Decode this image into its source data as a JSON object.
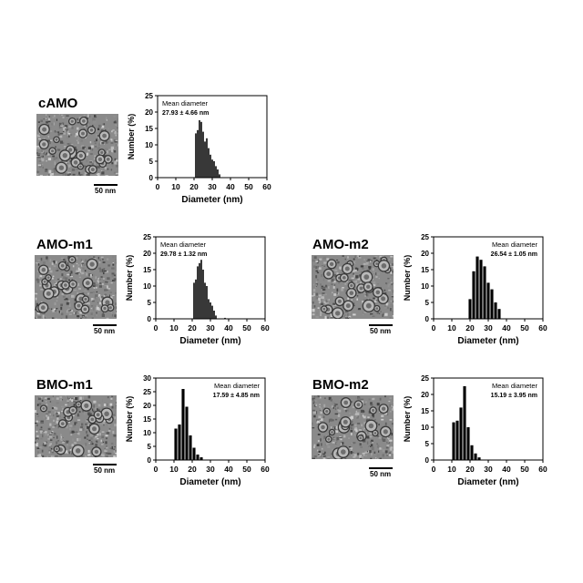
{
  "panels": [
    {
      "label": "cAMO",
      "scale_label": "50 nm"
    },
    {
      "label": "AMO-m1",
      "scale_label": "50 nm"
    },
    {
      "label": "AMO-m2",
      "scale_label": "50 nm"
    },
    {
      "label": "BMO-m1",
      "scale_label": "50 nm"
    },
    {
      "label": "BMO-m2",
      "scale_label": "50 nm"
    }
  ],
  "chart_data": [
    {
      "type": "bar",
      "sample": "cAMO",
      "xlabel": "Diameter (nm)",
      "ylabel": "Number (%)",
      "xlim": [
        0,
        60
      ],
      "ylim": [
        0,
        25
      ],
      "xticks": [
        0,
        10,
        20,
        30,
        40,
        60
      ],
      "xtick_labels": [
        "0",
        "10",
        "20",
        "30",
        "40",
        "50",
        "60"
      ],
      "yticks": [
        0,
        5,
        10,
        15,
        20,
        25
      ],
      "annotation_title": "Mean diameter",
      "annotation_value": "27.93 ± 4.66 nm",
      "annotation_position": "top-left",
      "x": [
        21,
        22,
        23,
        24,
        25,
        26,
        27,
        28,
        29,
        30,
        31,
        32,
        33,
        34
      ],
      "values": [
        13.5,
        14.5,
        17.5,
        17,
        14,
        11,
        12,
        9,
        7,
        5.5,
        5,
        3.5,
        2.5,
        1
      ]
    },
    {
      "type": "bar",
      "sample": "AMO-m1",
      "xlabel": "Diameter (nm)",
      "ylabel": "Number (%)",
      "xlim": [
        0,
        60
      ],
      "ylim": [
        0,
        25
      ],
      "xtick_labels": [
        "0",
        "10",
        "20",
        "30",
        "40",
        "50",
        "60"
      ],
      "yticks": [
        0,
        5,
        10,
        15,
        20,
        25
      ],
      "annotation_title": "Mean diameter",
      "annotation_value": "29.78 ± 1.32 nm",
      "annotation_position": "top-left",
      "x": [
        21,
        22,
        23,
        24,
        25,
        26,
        27,
        28,
        29,
        30,
        31,
        32,
        33,
        38
      ],
      "values": [
        11,
        12,
        16,
        17,
        18,
        15,
        11,
        10,
        6,
        5,
        4,
        2.5,
        1,
        0.3
      ]
    },
    {
      "type": "bar",
      "sample": "AMO-m2",
      "xlabel": "Diameter (nm)",
      "ylabel": "Number (%)",
      "xlim": [
        0,
        60
      ],
      "ylim": [
        0,
        25
      ],
      "xtick_labels": [
        "0",
        "10",
        "20",
        "30",
        "40",
        "50",
        "60"
      ],
      "yticks": [
        0,
        5,
        10,
        15,
        20,
        25
      ],
      "annotation_title": "Mean diameter",
      "annotation_value": "26.54 ± 1.05 nm",
      "annotation_position": "top-right",
      "x": [
        20,
        22,
        24,
        26,
        28,
        30,
        32,
        34,
        36
      ],
      "values": [
        6,
        14.5,
        19,
        18,
        16,
        11,
        9,
        5,
        3
      ]
    },
    {
      "type": "bar",
      "sample": "BMO-m1",
      "xlabel": "Diameter (nm)",
      "ylabel": "Number (%)",
      "xlim": [
        0,
        60
      ],
      "ylim": [
        0,
        30
      ],
      "xtick_labels": [
        "0",
        "10",
        "20",
        "30",
        "40",
        "50",
        "60"
      ],
      "yticks": [
        0,
        5,
        10,
        15,
        20,
        25,
        30
      ],
      "annotation_title": "Mean diameter",
      "annotation_value": "17.59 ± 4.85 nm",
      "annotation_position": "top-right",
      "x": [
        11,
        13,
        15,
        17,
        19,
        21,
        23,
        25
      ],
      "values": [
        11.5,
        13,
        26,
        19.5,
        9,
        4.5,
        2,
        1
      ]
    },
    {
      "type": "bar",
      "sample": "BMO-m2",
      "xlabel": "Diameter (nm)",
      "ylabel": "Number (%)",
      "xlim": [
        0,
        60
      ],
      "ylim": [
        0,
        25
      ],
      "xtick_labels": [
        "0",
        "10",
        "20",
        "30",
        "40",
        "50",
        "60"
      ],
      "yticks": [
        0,
        5,
        10,
        15,
        20,
        25
      ],
      "annotation_title": "Mean diameter",
      "annotation_value": "15.19 ± 3.95 nm",
      "annotation_position": "top-right",
      "x": [
        11,
        13,
        15,
        17,
        19,
        21,
        23,
        25
      ],
      "values": [
        11.5,
        12,
        16,
        22.5,
        10,
        4.5,
        2,
        0.8
      ]
    }
  ]
}
